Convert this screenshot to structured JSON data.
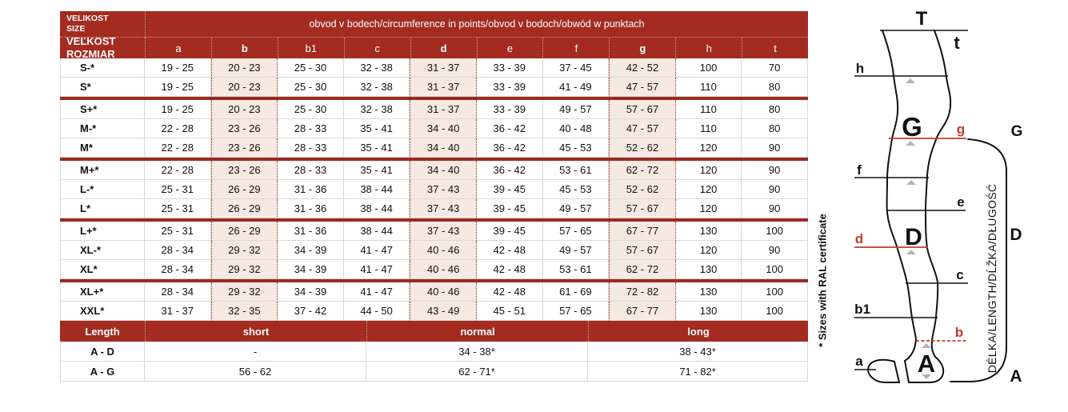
{
  "colors": {
    "header_bg": "#A32B20",
    "separator": "#992B22",
    "highlight_bg": "#F5E9E1",
    "highlight_border": "#A33527",
    "diagram_red": "#C23C2A",
    "triangle": "#B3B3B3"
  },
  "table": {
    "corner_row1_line1": "VELIKOST",
    "corner_row1_line2": "SIZE",
    "corner_row2_line1": "VEĽKOSŤ",
    "corner_row2_line2": "ROZMIAR",
    "span_header": "obvod v bodech/circumference in points/obvod v bodoch/obwód w punktach",
    "columns": [
      "a",
      "b",
      "b1",
      "c",
      "d",
      "e",
      "f",
      "g",
      "h",
      "t"
    ],
    "highlight_columns": [
      "b",
      "d",
      "g"
    ],
    "rows": [
      {
        "size": "S-*",
        "values": [
          "19 - 25",
          "20 - 23",
          "25 - 30",
          "32 - 38",
          "31 - 37",
          "33 - 39",
          "37 - 45",
          "42 - 52",
          "100",
          "70"
        ],
        "group_end": false
      },
      {
        "size": "S*",
        "values": [
          "19 - 25",
          "20 - 23",
          "25 - 30",
          "32 - 38",
          "31 - 37",
          "33 - 39",
          "41 - 49",
          "47 - 57",
          "110",
          "80"
        ],
        "group_end": true
      },
      {
        "size": "S+*",
        "values": [
          "19 - 25",
          "20 - 23",
          "25 - 30",
          "32 - 38",
          "31 - 37",
          "33 - 39",
          "49 - 57",
          "57 - 67",
          "110",
          "80"
        ],
        "group_end": false
      },
      {
        "size": "M-*",
        "values": [
          "22 - 28",
          "23 - 26",
          "28 - 33",
          "35 - 41",
          "34 - 40",
          "36 - 42",
          "40 - 48",
          "47 - 57",
          "110",
          "80"
        ],
        "group_end": false
      },
      {
        "size": "M*",
        "values": [
          "22 - 28",
          "23 - 26",
          "28 - 33",
          "35 - 41",
          "34 - 40",
          "36 - 42",
          "45 - 53",
          "52 - 62",
          "120",
          "90"
        ],
        "group_end": true
      },
      {
        "size": "M+*",
        "values": [
          "22 - 28",
          "23 - 26",
          "28 - 33",
          "35 - 41",
          "34 - 40",
          "36 - 42",
          "53 - 61",
          "62 - 72",
          "120",
          "90"
        ],
        "group_end": false
      },
      {
        "size": "L-*",
        "values": [
          "25 - 31",
          "26 - 29",
          "31 - 36",
          "38 - 44",
          "37 - 43",
          "39 - 45",
          "45 - 53",
          "52 - 62",
          "120",
          "90"
        ],
        "group_end": false
      },
      {
        "size": "L*",
        "values": [
          "25 - 31",
          "26 - 29",
          "31 - 36",
          "38 - 44",
          "37 - 43",
          "39 - 45",
          "49 - 57",
          "57 - 67",
          "120",
          "90"
        ],
        "group_end": true
      },
      {
        "size": "L+*",
        "values": [
          "25 - 31",
          "26 - 29",
          "31 - 36",
          "38 - 44",
          "37 - 43",
          "39 - 45",
          "57 - 65",
          "67 - 77",
          "130",
          "100"
        ],
        "group_end": false
      },
      {
        "size": "XL-*",
        "values": [
          "28 - 34",
          "29 - 32",
          "34 - 39",
          "41 - 47",
          "40 - 46",
          "42 - 48",
          "49 - 57",
          "57 - 67",
          "120",
          "90"
        ],
        "group_end": false
      },
      {
        "size": "XL*",
        "values": [
          "28 - 34",
          "29 - 32",
          "34 - 39",
          "41 - 47",
          "40 - 46",
          "42 - 48",
          "53 - 61",
          "62 - 72",
          "130",
          "100"
        ],
        "group_end": true
      },
      {
        "size": "XL+*",
        "values": [
          "28 - 34",
          "29 - 32",
          "34 - 39",
          "41 - 47",
          "40 - 46",
          "42 - 48",
          "61 - 69",
          "72 - 82",
          "130",
          "100"
        ],
        "group_end": false
      },
      {
        "size": "XXL*",
        "values": [
          "31 - 37",
          "32 - 35",
          "37 - 42",
          "44 - 50",
          "43 - 49",
          "45 - 51",
          "57 - 65",
          "67 - 77",
          "130",
          "100"
        ],
        "group_end": false
      }
    ]
  },
  "length_table": {
    "header": [
      "Length",
      "short",
      "normal",
      "long"
    ],
    "rows": [
      {
        "label": "A - D",
        "values": [
          "-",
          "34 - 38*",
          "38 - 43*"
        ]
      },
      {
        "label": "A - G",
        "values": [
          "56 - 62",
          "62 - 71*",
          "71 - 82*"
        ]
      }
    ]
  },
  "footnote": "* Sizes with RAL certificate",
  "diagram": {
    "top_label": "T",
    "top_side_label": "t",
    "line_labels": {
      "h": "h",
      "g": "g",
      "f": "f",
      "e": "e",
      "d": "d",
      "c": "c",
      "b1": "b1",
      "b": "b",
      "a": "a"
    },
    "zone_labels": {
      "thigh": "G",
      "calf": "D",
      "ankle": "A"
    },
    "bracket_labels": {
      "top": "G",
      "middle": "D",
      "bottom": "A"
    },
    "length_axis_text": "DÉLKA/LENGTH/DĹŽKA/DŁUGOŚĆ"
  }
}
